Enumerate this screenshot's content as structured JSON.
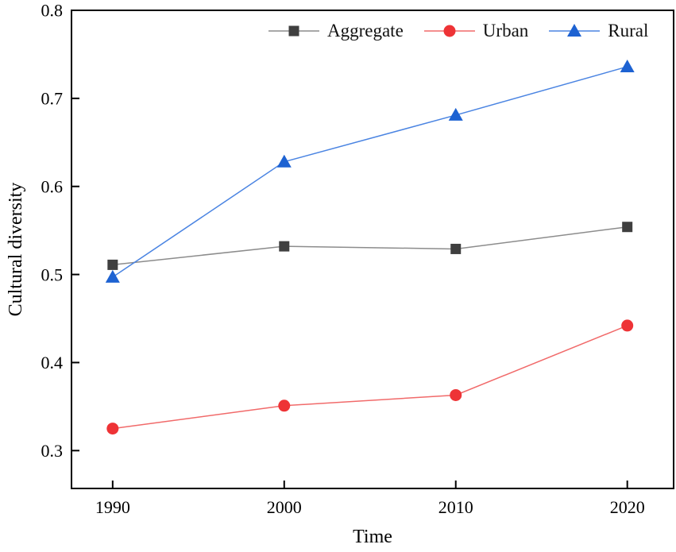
{
  "figure": {
    "background": "#ffffff"
  },
  "chart_data": {
    "type": "line",
    "title": "",
    "xlabel": "Time",
    "ylabel": "Cultural diversity",
    "x": [
      1990,
      2000,
      2010,
      2020
    ],
    "categories": [
      "1990",
      "2000",
      "2010",
      "2020"
    ],
    "xlim": [
      1987.6,
      2022.7
    ],
    "ylim": [
      0.257,
      0.8
    ],
    "xticks": [
      1990,
      2000,
      2010,
      2020
    ],
    "yticks": [
      0.3,
      0.4,
      0.5,
      0.6,
      0.7,
      0.8
    ],
    "grid": false,
    "legend_position": "top-inside",
    "series": [
      {
        "name": "Aggregate",
        "marker": "square",
        "marker_color": "#3f3f3f",
        "line_color": "#8c8c8c",
        "values": [
          0.511,
          0.532,
          0.529,
          0.554
        ]
      },
      {
        "name": "Urban",
        "marker": "circle",
        "marker_color": "#ee3336",
        "line_color": "#f16a6a",
        "values": [
          0.325,
          0.351,
          0.363,
          0.442
        ]
      },
      {
        "name": "Rural",
        "marker": "triangle",
        "marker_color": "#1d62d2",
        "line_color": "#4a84e2",
        "values": [
          0.497,
          0.628,
          0.681,
          0.736
        ]
      }
    ]
  }
}
